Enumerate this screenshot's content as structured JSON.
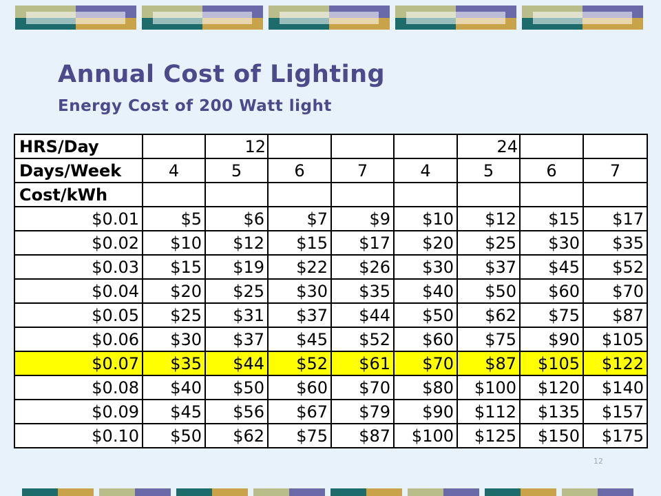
{
  "title": "Annual Cost of Lighting",
  "subtitle": "Energy Cost of 200 Watt light",
  "page_number": "12",
  "colors": {
    "title": "#4b4a8a",
    "highlight_row": "#ffff00",
    "background": "#e8f2fa",
    "deco_teal": "#1e6b6b",
    "deco_purple": "#6a6aa8",
    "deco_gold": "#c9a34a",
    "deco_olive": "#b8bd8a"
  },
  "table": {
    "hrs_label": "HRS/Day",
    "hrs_values": [
      "12",
      "24"
    ],
    "days_label": "Days/Week",
    "days_values": [
      "4",
      "5",
      "6",
      "7",
      "4",
      "5",
      "6",
      "7"
    ],
    "cost_label": "Cost/kWh",
    "highlight_row_index": 6,
    "rows": [
      {
        "rate": "$0.01",
        "values": [
          "$5",
          "$6",
          "$7",
          "$9",
          "$10",
          "$12",
          "$15",
          "$17"
        ]
      },
      {
        "rate": "$0.02",
        "values": [
          "$10",
          "$12",
          "$15",
          "$17",
          "$20",
          "$25",
          "$30",
          "$35"
        ]
      },
      {
        "rate": "$0.03",
        "values": [
          "$15",
          "$19",
          "$22",
          "$26",
          "$30",
          "$37",
          "$45",
          "$52"
        ]
      },
      {
        "rate": "$0.04",
        "values": [
          "$20",
          "$25",
          "$30",
          "$35",
          "$40",
          "$50",
          "$60",
          "$70"
        ]
      },
      {
        "rate": "$0.05",
        "values": [
          "$25",
          "$31",
          "$37",
          "$44",
          "$50",
          "$62",
          "$75",
          "$87"
        ]
      },
      {
        "rate": "$0.06",
        "values": [
          "$30",
          "$37",
          "$45",
          "$52",
          "$60",
          "$75",
          "$90",
          "$105"
        ]
      },
      {
        "rate": "$0.07",
        "values": [
          "$35",
          "$44",
          "$52",
          "$61",
          "$70",
          "$87",
          "$105",
          "$122"
        ]
      },
      {
        "rate": "$0.08",
        "values": [
          "$40",
          "$50",
          "$60",
          "$70",
          "$80",
          "$100",
          "$120",
          "$140"
        ]
      },
      {
        "rate": "$0.09",
        "values": [
          "$45",
          "$56",
          "$67",
          "$79",
          "$90",
          "$112",
          "$135",
          "$157"
        ]
      },
      {
        "rate": "$0.10",
        "values": [
          "$50",
          "$62",
          "$75",
          "$87",
          "$100",
          "$125",
          "$150",
          "$175"
        ]
      }
    ]
  }
}
